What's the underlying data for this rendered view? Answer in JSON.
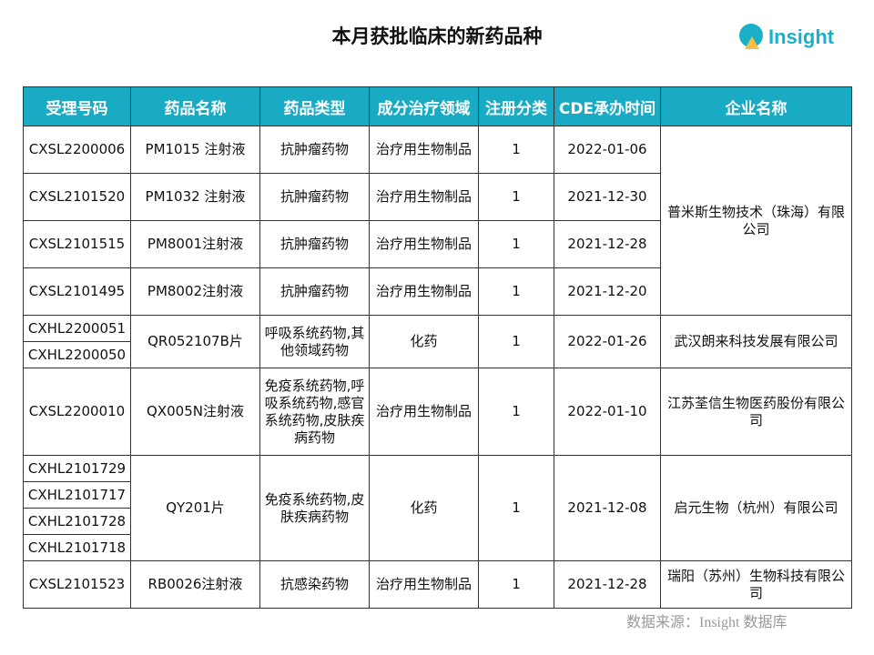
{
  "title": "本月获批临床的新药品种",
  "logo": {
    "text": "Insight",
    "colors": {
      "circle": "#1ab1c8",
      "triangle": "#f4c04a"
    }
  },
  "header_color": "#1aabc4",
  "columns": [
    "受理号码",
    "药品名称",
    "药品类型",
    "成分治疗领域",
    "注册分类",
    "CDE承办时间",
    "企业名称"
  ],
  "rows": [
    {
      "ids": [
        "CXSL2200006"
      ],
      "name": "PM1015 注射液",
      "type": "抗肿瘤药物",
      "area": "治疗用生物制品",
      "class": "1",
      "date": "2022-01-06"
    },
    {
      "ids": [
        "CXSL2101520"
      ],
      "name": "PM1032 注射液",
      "type": "抗肿瘤药物",
      "area": "治疗用生物制品",
      "class": "1",
      "date": "2021-12-30"
    },
    {
      "ids": [
        "CXSL2101515"
      ],
      "name": "PM8001注射液",
      "type": "抗肿瘤药物",
      "area": "治疗用生物制品",
      "class": "1",
      "date": "2021-12-28"
    },
    {
      "ids": [
        "CXSL2101495"
      ],
      "name": "PM8002注射液",
      "type": "抗肿瘤药物",
      "area": "治疗用生物制品",
      "class": "1",
      "date": "2021-12-20"
    },
    {
      "ids": [
        "CXHL2200051",
        "CXHL2200050"
      ],
      "name": "QR052107B片",
      "type": "呼吸系统药物,其他领域药物",
      "area": "化药",
      "class": "1",
      "date": "2022-01-26",
      "company": "武汉朗来科技发展有限公司"
    },
    {
      "ids": [
        "CXSL2200010"
      ],
      "name": "QX005N注射液",
      "type": "免疫系统药物,呼吸系统药物,感官系统药物,皮肤疾病药物",
      "area": "治疗用生物制品",
      "class": "1",
      "date": "2022-01-10",
      "company": "江苏荃信生物医药股份有限公司"
    },
    {
      "ids": [
        "CXHL2101729",
        "CXHL2101717",
        "CXHL2101728",
        "CXHL2101718"
      ],
      "name": "QY201片",
      "type": "免疫系统药物,皮肤疾病药物",
      "area": "化药",
      "class": "1",
      "date": "2021-12-08",
      "company": "启元生物（杭州）有限公司"
    },
    {
      "ids": [
        "CXSL2101523"
      ],
      "name": "RB0026注射液",
      "type": "抗感染药物",
      "area": "治疗用生物制品",
      "class": "1",
      "date": "2021-12-28",
      "company": "瑞阳（苏州）生物科技有限公司"
    }
  ],
  "company_group1": "普米斯生物技术（珠海）有限公司",
  "source": "数据来源：Insight 数据库"
}
